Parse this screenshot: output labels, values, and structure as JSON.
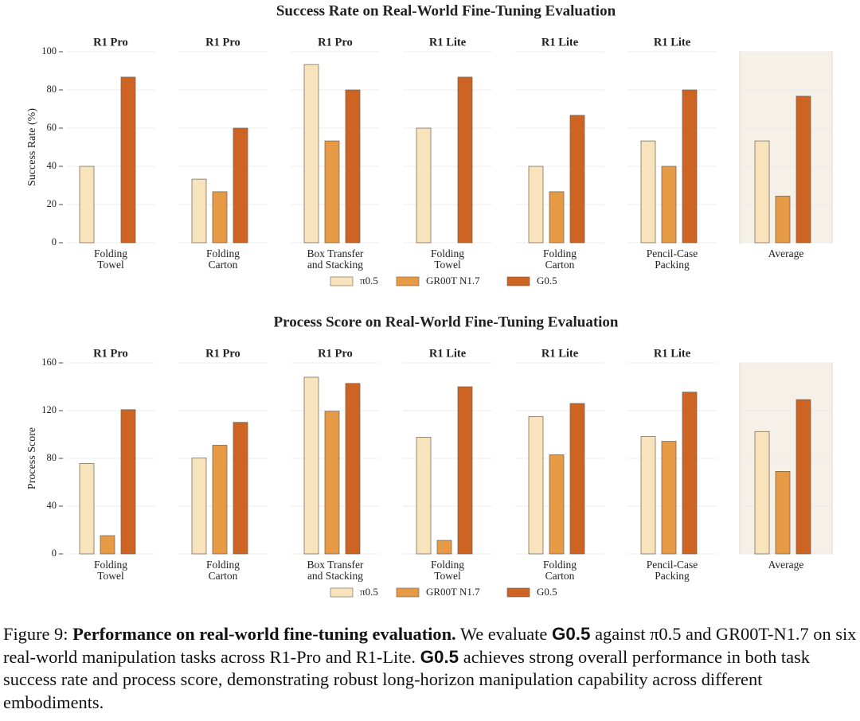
{
  "chart_data": [
    {
      "type": "bar",
      "title": "Success Rate on Real-World Fine-Tuning Evaluation",
      "y_label": "Success Rate (%)",
      "panel_headers": [
        "R1 Pro",
        "R1 Pro",
        "R1 Pro",
        "R1 Lite",
        "R1 Lite",
        "R1 Lite",
        null
      ],
      "categories": [
        [
          "Folding",
          "Towel"
        ],
        [
          "Folding",
          "Carton"
        ],
        [
          "Box Transfer",
          "and Stacking"
        ],
        [
          "Folding",
          "Towel"
        ],
        [
          "Folding",
          "Carton"
        ],
        [
          "Pencil-Case",
          "Packing"
        ],
        [
          "Average"
        ]
      ],
      "series": [
        {
          "name": "π0.5",
          "color": "#f7e4bd",
          "values": [
            40,
            33.3,
            93.3,
            60,
            40,
            53.3,
            53.3
          ]
        },
        {
          "name": "GR00T N1.7",
          "color": "#e69a46",
          "values": [
            0,
            26.7,
            53.3,
            0,
            26.7,
            40,
            24.4
          ]
        },
        {
          "name": "G0.5",
          "color": "#cd6424",
          "values": [
            86.7,
            60,
            80,
            86.7,
            66.7,
            80,
            76.7
          ]
        }
      ],
      "ylim": [
        0,
        100
      ],
      "yticks": [
        0,
        20,
        40,
        60,
        80,
        100
      ],
      "grid": true
    },
    {
      "type": "bar",
      "title": "Process Score on Real-World Fine-Tuning Evaluation",
      "y_label": "Process Score",
      "panel_headers": [
        "R1 Pro",
        "R1 Pro",
        "R1 Pro",
        "R1 Lite",
        "R1 Lite",
        "R1 Lite",
        null
      ],
      "categories": [
        [
          "Folding",
          "Towel"
        ],
        [
          "Folding",
          "Carton"
        ],
        [
          "Box Transfer",
          "and Stacking"
        ],
        [
          "Folding",
          "Towel"
        ],
        [
          "Folding",
          "Carton"
        ],
        [
          "Pencil-Case",
          "Packing"
        ],
        [
          "Average"
        ]
      ],
      "series": [
        {
          "name": "π0.5",
          "color": "#f7e4bd",
          "values": [
            75.7,
            80.3,
            148,
            97.6,
            115,
            98.3,
            102.5
          ]
        },
        {
          "name": "GR00T N1.7",
          "color": "#e69a46",
          "values": [
            15.3,
            91,
            119.5,
            11.3,
            83,
            94.3,
            69.1
          ]
        },
        {
          "name": "G0.5",
          "color": "#cd6424",
          "values": [
            120.8,
            110.2,
            142.8,
            140,
            126,
            135.5,
            129.2
          ]
        }
      ],
      "ylim": [
        0,
        160
      ],
      "yticks": [
        0,
        40,
        80,
        120,
        160
      ],
      "grid": true
    }
  ],
  "caption": [
    "Figure 9:",
    "Performance on real-world fine-tuning evaluation.",
    "We evaluate",
    "G0.5",
    "against π0.5 and GR00T-N1.7 on six real-world manipulation tasks across R1-Pro and R1-Lite.",
    "G0.5",
    "achieves strong overall performance in both task success rate and process score, demonstrating robust long-horizon manipulation capability across different embodiments."
  ]
}
